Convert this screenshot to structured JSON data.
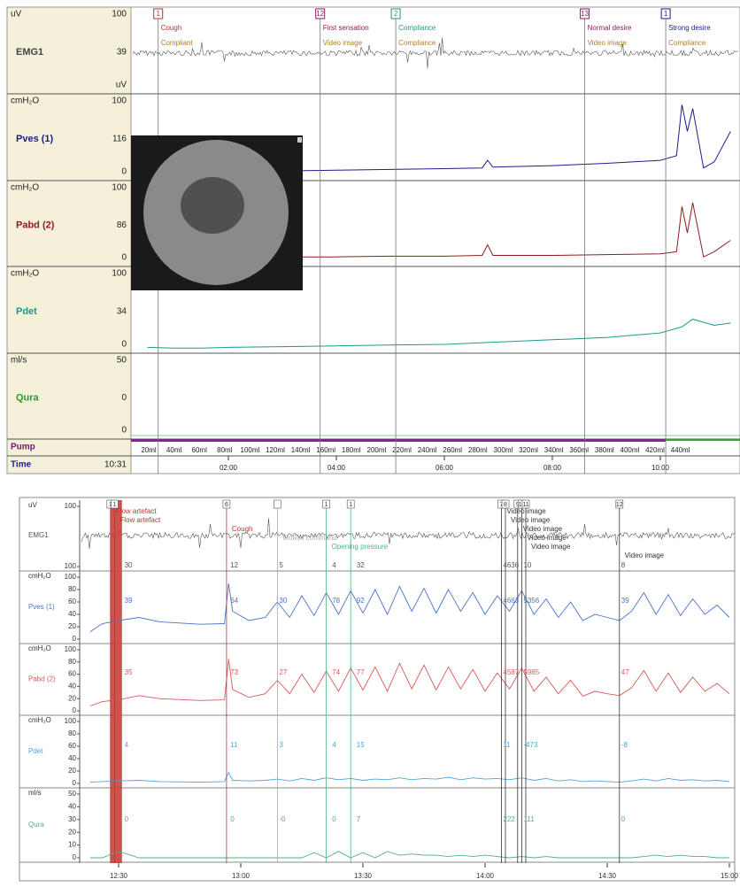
{
  "top": {
    "type": "line",
    "channels": [
      {
        "unit": "uV",
        "max": 100,
        "name": "EMG1",
        "value": 39,
        "unit_bottom": "uV",
        "color": "#444444"
      },
      {
        "unit": "cmH₂O",
        "max": 100,
        "name": "Pves (1)",
        "value": 116,
        "min": 0,
        "color": "#1c1c8c"
      },
      {
        "unit": "cmH₂O",
        "max": 100,
        "name": "Pabd (2)",
        "value": 86,
        "min": 0,
        "color": "#8c1c1c"
      },
      {
        "unit": "cmH₂O",
        "max": 100,
        "name": "Pdet",
        "value": 34,
        "min": 0,
        "color": "#1a9a8a"
      },
      {
        "unit": "ml/s",
        "max": 50,
        "name": "Qura",
        "value": 0,
        "min": 0,
        "color": "#2a9a2a"
      }
    ],
    "pump_label": "Pump",
    "time_label": "Time",
    "time_value": "10:31",
    "xticks": [
      {
        "value": 2,
        "label": "02:00"
      },
      {
        "value": 4,
        "label": "04:00"
      },
      {
        "value": 6,
        "label": "06:00"
      },
      {
        "value": 8,
        "label": "08:00"
      },
      {
        "value": 10,
        "label": "10:00"
      }
    ],
    "volumes": [
      "20ml",
      "40ml",
      "60ml",
      "80ml",
      "100ml",
      "120ml",
      "140ml",
      "160ml",
      "180ml",
      "200ml",
      "220ml",
      "240ml",
      "260ml",
      "280ml",
      "300ml",
      "320ml",
      "340ml",
      "360ml",
      "380ml",
      "400ml",
      "420ml",
      "440ml"
    ],
    "events": [
      {
        "x": 0.7,
        "marker": "1",
        "label": "Cough",
        "label2": "Compliant",
        "color": "#c03030"
      },
      {
        "x": 3.7,
        "marker": "12",
        "label": "First sensation",
        "label2": "Video image",
        "color": "#8c1c5c"
      },
      {
        "x": 5.1,
        "marker": "2",
        "label": "Compliance",
        "label2": "Compliance",
        "color": "#1a9a8a"
      },
      {
        "x": 8.6,
        "marker": "13",
        "label": "Normal desire",
        "label2": "Video image",
        "color": "#8c1c5c"
      },
      {
        "x": 10.1,
        "marker": "1",
        "label": "Strong desire",
        "label2": "Compliance",
        "color": "#1c1c8c"
      }
    ],
    "pressure_x": [
      3,
      4,
      5,
      6,
      6.7,
      6.8,
      6.9,
      8,
      9,
      10,
      10.3,
      10.4,
      10.5,
      10.6,
      10.8,
      11,
      11.3
    ],
    "series": [
      {
        "name": "Pves (1)",
        "channel": 1,
        "values": [
          8,
          9,
          10,
          11,
          12,
          22,
          13,
          15,
          18,
          22,
          28,
          95,
          60,
          90,
          12,
          20,
          60
        ]
      },
      {
        "name": "Pabd (2)",
        "channel": 2,
        "values": [
          8,
          8,
          9,
          9,
          10,
          24,
          10,
          10,
          11,
          12,
          15,
          75,
          40,
          80,
          8,
          15,
          30
        ]
      }
    ],
    "pdet_x": [
      0.5,
      1,
      1.5,
      2,
      3,
      4,
      5,
      6,
      7,
      8,
      9,
      10,
      10.4,
      10.6,
      11,
      11.3
    ],
    "pdet_values": [
      3,
      2,
      2,
      3,
      4,
      5,
      6,
      7,
      10,
      13,
      16,
      22,
      30,
      40,
      32,
      35
    ]
  },
  "bottom": {
    "type": "line",
    "channels": [
      {
        "unit": "uV",
        "name": "EMG1",
        "yticks": [
          {
            "value": -100,
            "label": "100"
          },
          100
        ],
        "ylim": [
          -100,
          100
        ],
        "color": "#555555"
      },
      {
        "unit": "cmH₂O",
        "name": "Pves (1)",
        "yticks": [
          0,
          20,
          40,
          60,
          80,
          100
        ],
        "ylim": [
          0,
          100
        ],
        "color": "#4a74c8"
      },
      {
        "unit": "cmH₂O",
        "name": "Pabd (2)",
        "yticks": [
          0,
          20,
          40,
          60,
          80,
          100
        ],
        "ylim": [
          0,
          100
        ],
        "color": "#d85a5a"
      },
      {
        "unit": "cmH₂O",
        "name": "Pdet",
        "yticks": [
          0,
          20,
          40,
          60,
          80,
          100
        ],
        "ylim": [
          0,
          100
        ],
        "color": "#4aa6d8"
      },
      {
        "unit": "ml/s",
        "name": "Qura",
        "yticks": [
          0,
          10,
          20,
          30,
          40,
          50
        ],
        "ylim": [
          0,
          50
        ],
        "color": "#50b080"
      }
    ],
    "xticks": [
      {
        "value": 750,
        "label": "12:30"
      },
      {
        "value": 780,
        "label": "13:00"
      },
      {
        "value": 810,
        "label": "13:30"
      },
      {
        "value": 840,
        "label": "14:00"
      },
      {
        "value": 870,
        "label": "14:30"
      },
      {
        "value": 900,
        "label": "15:00"
      }
    ],
    "events": [
      {
        "x": 748,
        "marker": "1",
        "label": "Flow artefact",
        "color": "#c03030"
      },
      {
        "x": 749,
        "marker": "1",
        "label": "Flow artefact",
        "color": "#c03030"
      },
      {
        "x": 776.5,
        "marker": "6",
        "label": "Cough",
        "color": "#c03030"
      },
      {
        "x": 789,
        "marker": "",
        "label": "Motion command",
        "color": "#aaaaaa"
      },
      {
        "x": 801,
        "marker": "1",
        "label": "Opening pressure",
        "color": "#50b080"
      },
      {
        "x": 807,
        "marker": "1",
        "label": "",
        "color": "#50b080"
      },
      {
        "x": 844,
        "marker": "7",
        "label": "Video image",
        "color": "#333333"
      },
      {
        "x": 845,
        "marker": "8",
        "label": "Video image",
        "color": "#333333"
      },
      {
        "x": 848,
        "marker": "9",
        "label": "Video image",
        "color": "#333333"
      },
      {
        "x": 849,
        "marker": "10",
        "label": "Video image",
        "color": "#333333"
      },
      {
        "x": 850,
        "marker": "11",
        "label": "Video image",
        "color": "#333333"
      },
      {
        "x": 873,
        "marker": "12",
        "label": "Video image",
        "color": "#333333"
      }
    ],
    "readouts": [
      {
        "channel": 0,
        "x": 751,
        "label": "30"
      },
      {
        "channel": 0,
        "x": 777,
        "label": "12"
      },
      {
        "channel": 0,
        "x": 789,
        "label": "5"
      },
      {
        "channel": 0,
        "x": 802,
        "label": "4"
      },
      {
        "channel": 0,
        "x": 808,
        "label": "32"
      },
      {
        "channel": 0,
        "x": 844,
        "label": "4636"
      },
      {
        "channel": 0,
        "x": 849,
        "label": "10"
      },
      {
        "channel": 0,
        "x": 873,
        "label": "8"
      },
      {
        "channel": 1,
        "x": 751,
        "label": "39"
      },
      {
        "channel": 1,
        "x": 777,
        "label": "64"
      },
      {
        "channel": 1,
        "x": 789,
        "label": "30"
      },
      {
        "channel": 1,
        "x": 802,
        "label": "78"
      },
      {
        "channel": 1,
        "x": 808,
        "label": "92"
      },
      {
        "channel": 1,
        "x": 844,
        "label": "4663"
      },
      {
        "channel": 1,
        "x": 849,
        "label": "5356"
      },
      {
        "channel": 1,
        "x": 873,
        "label": "39"
      },
      {
        "channel": 2,
        "x": 751,
        "label": "35"
      },
      {
        "channel": 2,
        "x": 777,
        "label": "73"
      },
      {
        "channel": 2,
        "x": 789,
        "label": "27"
      },
      {
        "channel": 2,
        "x": 802,
        "label": "74"
      },
      {
        "channel": 2,
        "x": 808,
        "label": "77"
      },
      {
        "channel": 2,
        "x": 844,
        "label": "4587"
      },
      {
        "channel": 2,
        "x": 849,
        "label": "5985"
      },
      {
        "channel": 2,
        "x": 873,
        "label": "47"
      },
      {
        "channel": 3,
        "x": 751,
        "label": "4"
      },
      {
        "channel": 3,
        "x": 777,
        "label": "11"
      },
      {
        "channel": 3,
        "x": 789,
        "label": "3"
      },
      {
        "channel": 3,
        "x": 802,
        "label": "4"
      },
      {
        "channel": 3,
        "x": 808,
        "label": "15"
      },
      {
        "channel": 3,
        "x": 844,
        "label": "11"
      },
      {
        "channel": 3,
        "x": 849,
        "label": "-473"
      },
      {
        "channel": 3,
        "x": 873,
        "label": "-8"
      },
      {
        "channel": 4,
        "x": 751,
        "label": "0"
      },
      {
        "channel": 4,
        "x": 777,
        "label": "0"
      },
      {
        "channel": 4,
        "x": 789,
        "label": "-0"
      },
      {
        "channel": 4,
        "x": 802,
        "label": "0"
      },
      {
        "channel": 4,
        "x": 808,
        "label": "7"
      },
      {
        "channel": 4,
        "x": 844,
        "label": "222"
      },
      {
        "channel": 4,
        "x": 849,
        "label": "111"
      },
      {
        "channel": 4,
        "x": 873,
        "label": "0"
      }
    ],
    "x": [
      743,
      746,
      750,
      755,
      760,
      770,
      776,
      777,
      778,
      782,
      786,
      789,
      792,
      795,
      798,
      801,
      804,
      807,
      810,
      813,
      816,
      819,
      822,
      825,
      828,
      831,
      834,
      837,
      840,
      843,
      846,
      849,
      852,
      855,
      858,
      861,
      864,
      867,
      870,
      873,
      876,
      879,
      882,
      885,
      888,
      891,
      894,
      897,
      900
    ],
    "series": [
      {
        "name": "Pves (1)",
        "channel": 1,
        "values": [
          12,
          25,
          30,
          35,
          28,
          24,
          25,
          90,
          45,
          30,
          35,
          60,
          35,
          70,
          38,
          75,
          40,
          78,
          42,
          80,
          40,
          85,
          45,
          82,
          42,
          80,
          45,
          75,
          40,
          70,
          45,
          78,
          40,
          65,
          35,
          60,
          30,
          40,
          35,
          30,
          45,
          75,
          40,
          72,
          38,
          65,
          40,
          55,
          35
        ]
      },
      {
        "name": "Pabd (2)",
        "channel": 2,
        "values": [
          8,
          15,
          18,
          25,
          20,
          17,
          18,
          85,
          35,
          22,
          28,
          50,
          28,
          60,
          30,
          65,
          32,
          70,
          34,
          72,
          32,
          78,
          36,
          75,
          34,
          72,
          36,
          68,
          32,
          62,
          36,
          70,
          32,
          55,
          28,
          50,
          24,
          32,
          28,
          25,
          38,
          66,
          32,
          62,
          30,
          55,
          32,
          45,
          28
        ]
      },
      {
        "name": "Pdet",
        "channel": 3,
        "values": [
          2,
          3,
          4,
          5,
          3,
          2,
          3,
          18,
          5,
          4,
          5,
          7,
          4,
          8,
          5,
          9,
          6,
          8,
          5,
          7,
          6,
          9,
          6,
          8,
          7,
          10,
          6,
          9,
          7,
          8,
          6,
          9,
          5,
          8,
          4,
          6,
          3,
          4,
          3,
          2,
          4,
          7,
          4,
          8,
          5,
          6,
          4,
          5,
          3
        ]
      },
      {
        "name": "Qura",
        "channel": 4,
        "values": [
          0,
          0,
          5,
          0,
          0,
          0,
          0,
          0,
          0,
          0,
          0,
          0,
          0,
          0,
          4,
          0,
          5,
          0,
          4,
          0,
          5,
          2,
          3,
          2,
          2,
          1,
          2,
          1,
          2,
          1,
          0,
          1,
          0,
          1,
          0,
          0,
          0,
          0,
          0,
          0,
          0,
          1,
          2,
          1,
          2,
          1,
          1,
          0,
          0
        ]
      }
    ]
  }
}
